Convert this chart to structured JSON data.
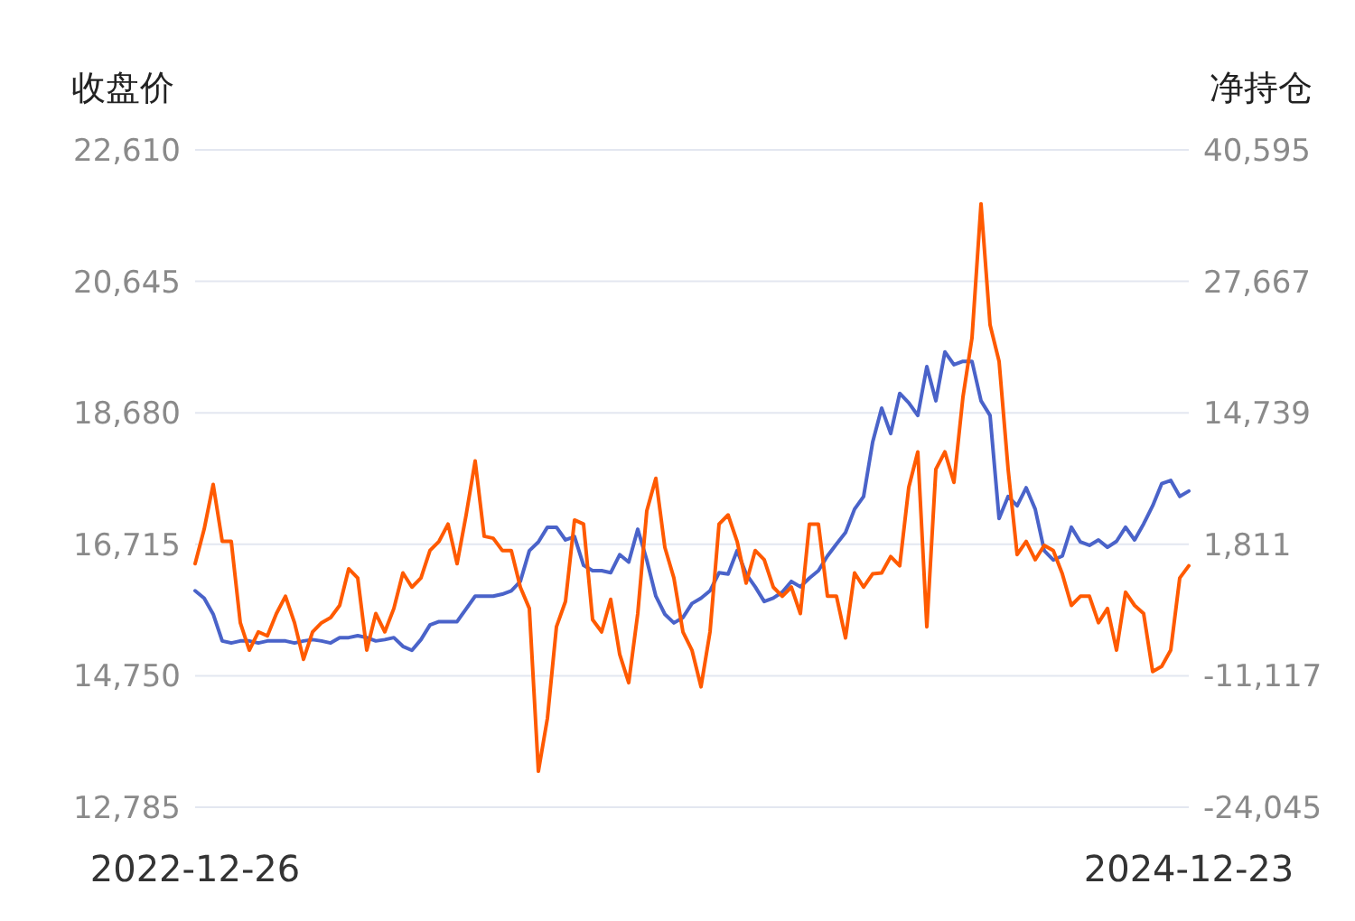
{
  "chart_data": {
    "type": "line",
    "ylabel": "收盘价",
    "y2label": "净持仓",
    "categories": [
      "2022-12-26",
      null,
      null,
      null,
      null,
      null,
      null,
      null,
      null,
      null,
      null,
      null,
      null,
      null,
      null,
      null,
      null,
      null,
      null,
      null,
      null,
      null,
      null,
      null,
      null,
      null,
      null,
      null,
      null,
      null,
      null,
      null,
      null,
      null,
      null,
      null,
      null,
      null,
      null,
      null,
      null,
      null,
      null,
      null,
      null,
      null,
      null,
      null,
      null,
      null,
      null,
      null,
      null,
      null,
      null,
      null,
      null,
      null,
      null,
      null,
      null,
      null,
      null,
      null,
      null,
      null,
      null,
      null,
      null,
      null,
      null,
      null,
      null,
      null,
      null,
      null,
      null,
      null,
      null,
      null,
      null,
      null,
      null,
      null,
      null,
      null,
      null,
      null,
      null,
      null,
      null,
      null,
      null,
      null,
      null,
      null,
      null,
      null,
      null,
      null,
      null,
      null,
      null,
      null,
      null,
      null,
      null,
      null,
      null,
      null,
      "2024-12-23"
    ],
    "series": [
      {
        "color": "#4a63c9",
        "values": [
          16020,
          15910,
          15670,
          15270,
          15240,
          15270,
          15270,
          15240,
          15270,
          15270,
          15270,
          15240,
          15270,
          15290,
          15270,
          15240,
          15320,
          15320,
          15350,
          15320,
          15270,
          15290,
          15320,
          15190,
          15130,
          15290,
          15510,
          15560,
          15560,
          15560,
          15750,
          15940,
          15940,
          15940,
          15970,
          16020,
          16160,
          16620,
          16750,
          16970,
          16970,
          16780,
          16830,
          16400,
          16320,
          16320,
          16290,
          16560,
          16450,
          16940,
          16480,
          15940,
          15670,
          15540,
          15620,
          15830,
          15910,
          16020,
          16290,
          16270,
          16620,
          16270,
          16080,
          15860,
          15910,
          16000,
          16160,
          16080,
          16210,
          16320,
          16540,
          16720,
          16890,
          17240,
          17430,
          18240,
          18750,
          18370,
          18970,
          18830,
          18640,
          19370,
          18860,
          19590,
          19400,
          19450,
          19450,
          18860,
          18640,
          17100,
          17430,
          17290,
          17560,
          17240,
          16620,
          16480,
          16540,
          16970,
          16750,
          16700,
          16780,
          16670,
          16760,
          16970,
          16780,
          17020,
          17290,
          17620,
          17670,
          17430,
          17510
        ]
      },
      {
        "color": "#ff5a00",
        "axis": "y2",
        "values": [
          -100,
          3300,
          7700,
          2100,
          2100,
          -5900,
          -8600,
          -6800,
          -7200,
          -5000,
          -3300,
          -5900,
          -9500,
          -6800,
          -5900,
          -5400,
          -4200,
          -600,
          -1500,
          -8600,
          -5000,
          -6800,
          -4500,
          -1000,
          -2400,
          -1500,
          1200,
          2100,
          3800,
          -100,
          4700,
          10000,
          2600,
          2400,
          1200,
          1200,
          -2400,
          -4500,
          -20500,
          -15300,
          -6300,
          -3800,
          4200,
          3800,
          -5600,
          -6800,
          -3600,
          -9000,
          -11800,
          -5000,
          5100,
          8300,
          1500,
          -1500,
          -6800,
          -8600,
          -12200,
          -6800,
          3800,
          4700,
          2100,
          -2000,
          1200,
          300,
          -2400,
          -3300,
          -2400,
          -5000,
          3800,
          3800,
          -3300,
          -3300,
          -7400,
          -1000,
          -2400,
          -1100,
          -1000,
          600,
          -300,
          7400,
          10900,
          -6300,
          9200,
          10900,
          7900,
          16300,
          22100,
          35300,
          23400,
          19800,
          9200,
          800,
          2100,
          300,
          1700,
          1200,
          -1100,
          -4200,
          -3300,
          -3300,
          -5900,
          -4500,
          -8600,
          -2900,
          -4200,
          -5000,
          -10700,
          -10200,
          -8600,
          -1500,
          -300
        ]
      }
    ],
    "ylim": [
      12785,
      22610
    ],
    "yticks": [
      {
        "value": 12785,
        "label": "12,785"
      },
      {
        "value": 14750,
        "label": "14,750"
      },
      {
        "value": 16715,
        "label": "16,715"
      },
      {
        "value": 18680,
        "label": "18,680"
      },
      {
        "value": 20645,
        "label": "20,645"
      },
      {
        "value": 22610,
        "label": "22,610"
      }
    ],
    "y2lim": [
      -24045,
      40595
    ],
    "y2ticks": [
      {
        "value": -24045,
        "label": "-24,045"
      },
      {
        "value": -11117,
        "label": "-11,117"
      },
      {
        "value": 1811,
        "label": "1,811"
      },
      {
        "value": 14739,
        "label": "14,739"
      },
      {
        "value": 27667,
        "label": "27,667"
      },
      {
        "value": 40595,
        "label": "40,595"
      }
    ],
    "grid": "y",
    "line_style": "solid"
  }
}
